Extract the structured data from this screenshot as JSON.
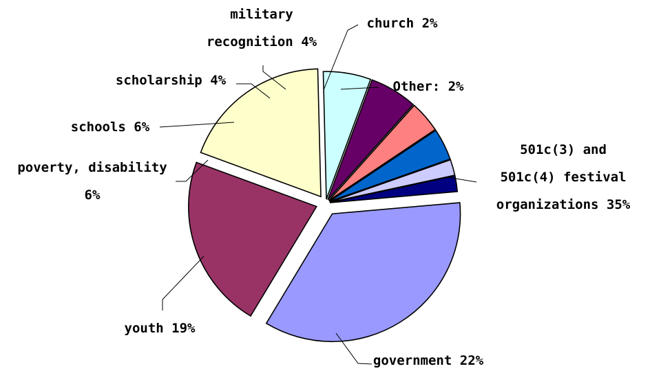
{
  "chart_data": {
    "type": "pie",
    "title": "",
    "slices": [
      {
        "label": [
          "501c(3) and",
          "501c(4) festival",
          "organizations 35%"
        ],
        "value": 35,
        "color": "#9999ff"
      },
      {
        "label": [
          "government 22%"
        ],
        "value": 22,
        "color": "#993366"
      },
      {
        "label": [
          "youth 19%"
        ],
        "value": 19,
        "color": "#ffffcc"
      },
      {
        "label": [
          "poverty, disability",
          "6%"
        ],
        "value": 6,
        "color": "#ccffff"
      },
      {
        "label": [
          "schools 6%"
        ],
        "value": 6,
        "color": "#660066"
      },
      {
        "label": [
          "scholarship 4%"
        ],
        "value": 4,
        "color": "#ff8080"
      },
      {
        "label": [
          "military",
          "recognition 4%"
        ],
        "value": 4,
        "color": "#0066cc"
      },
      {
        "label": [
          "church 2%"
        ],
        "value": 2,
        "color": "#ccccff"
      },
      {
        "label": [
          "Other: 2%"
        ],
        "value": 2,
        "color": "#000080"
      }
    ]
  }
}
